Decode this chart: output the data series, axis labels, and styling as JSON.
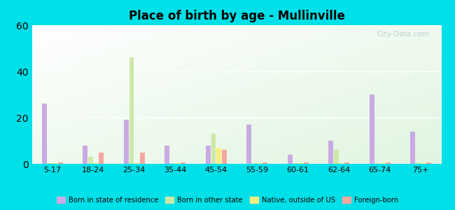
{
  "title": "Place of birth by age - Mullinville",
  "categories": [
    "5-17",
    "18-24",
    "25-34",
    "35-44",
    "45-54",
    "55-59",
    "60-61",
    "62-64",
    "65-74",
    "75+"
  ],
  "series": {
    "Born in state of residence": [
      26,
      8,
      19,
      8,
      8,
      17,
      4,
      10,
      30,
      14
    ],
    "Born in other state": [
      0.3,
      3,
      46,
      0.3,
      13,
      0.3,
      0.3,
      6,
      0.3,
      0.3
    ],
    "Native, outside of US": [
      0.3,
      0.3,
      0.3,
      0.3,
      7,
      0.3,
      0.3,
      0.3,
      0.3,
      0.3
    ],
    "Foreign-born": [
      0.5,
      5,
      5,
      0.5,
      6,
      0.5,
      0.5,
      0.5,
      0.5,
      0.5
    ]
  },
  "colors": {
    "Born in state of residence": "#c9aae2",
    "Born in other state": "#cde8a8",
    "Native, outside of US": "#f5ef82",
    "Foreign-born": "#f5a8a0"
  },
  "ylim": [
    0,
    60
  ],
  "yticks": [
    0,
    20,
    40,
    60
  ],
  "bar_width": 0.13,
  "outer_bg": "#00e0e8",
  "grid_color": "#ffffff",
  "watermark": "City-Data.com"
}
